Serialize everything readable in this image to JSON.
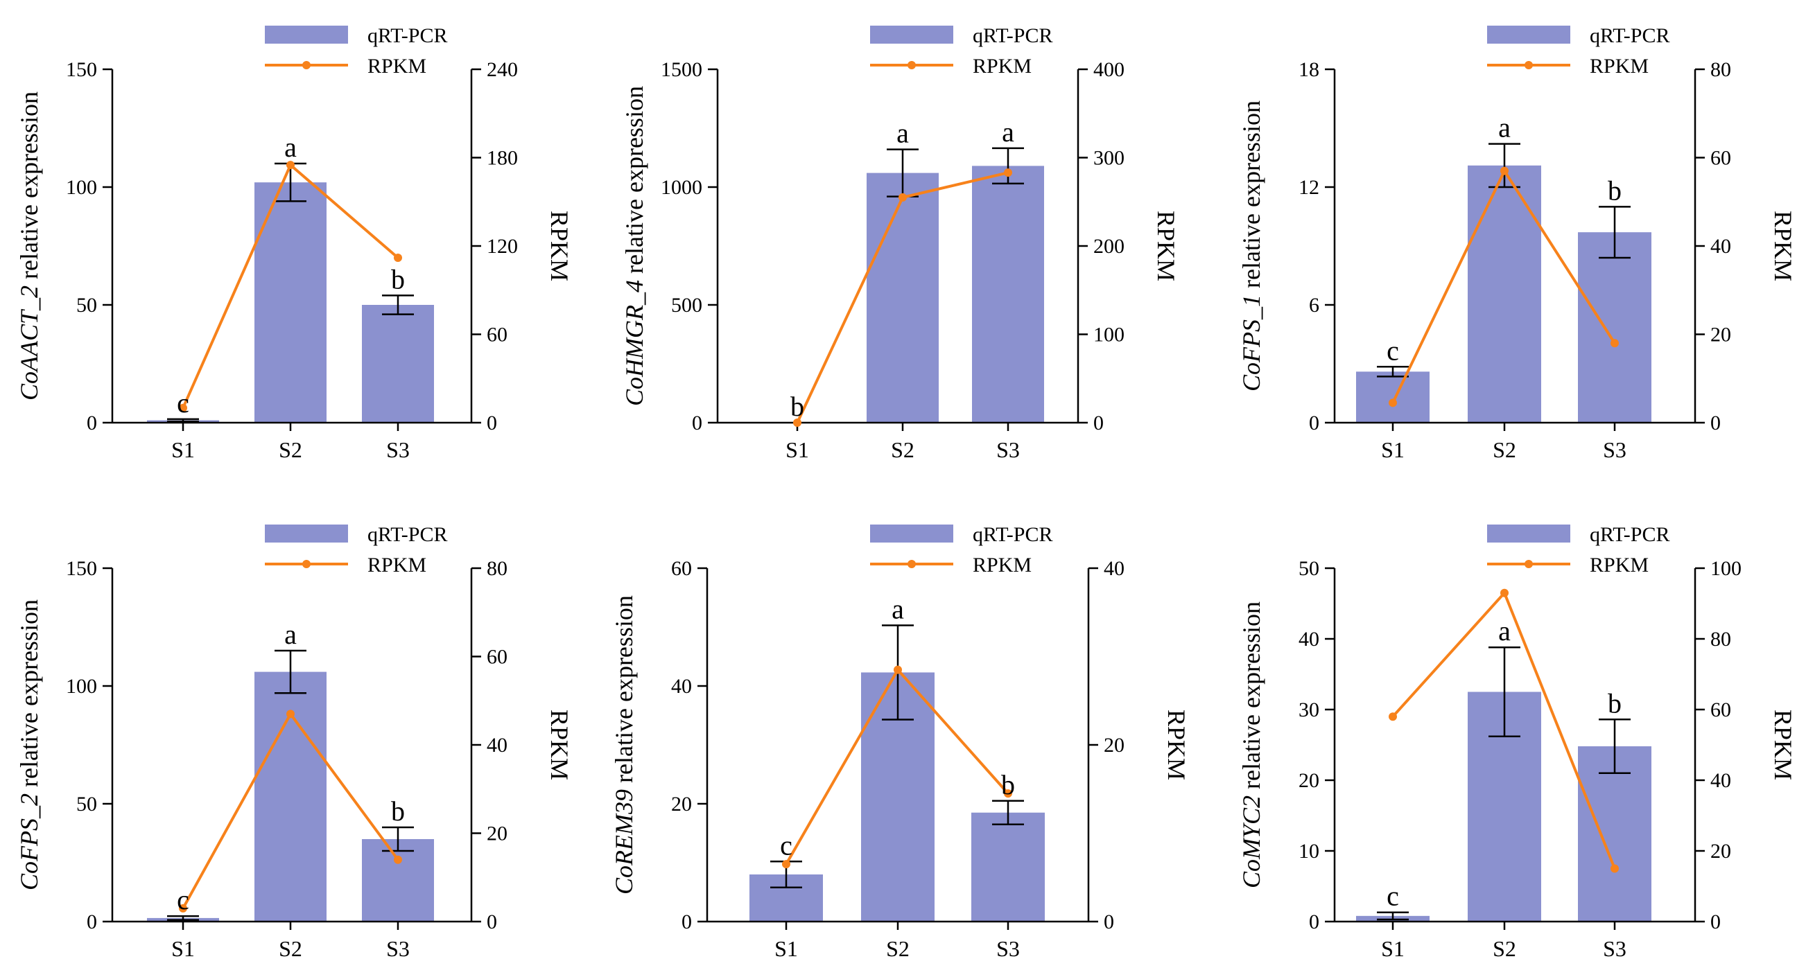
{
  "legend": {
    "bar_label": "qRT-PCR",
    "line_label": "RPKM"
  },
  "colors": {
    "bar": "#8b91cf",
    "line": "#f7821b",
    "axis": "#000000"
  },
  "chart_data": [
    {
      "type": "bar",
      "gene": "CoAACT_2",
      "ylabel_suffix": " relative expression",
      "y2label": "RPKM",
      "categories": [
        "S1",
        "S2",
        "S3"
      ],
      "left_ylim": [
        0,
        150
      ],
      "left_ticks": [
        0,
        50,
        100,
        150
      ],
      "right_ylim": [
        0,
        240
      ],
      "right_ticks": [
        0,
        60,
        120,
        180,
        240
      ],
      "series": [
        {
          "name": "qRT-PCR",
          "values": [
            1,
            102,
            50
          ],
          "errors": [
            0.5,
            8,
            4
          ]
        },
        {
          "name": "RPKM",
          "values": [
            10,
            175,
            112
          ]
        }
      ],
      "letters": [
        "c",
        "a",
        "b"
      ]
    },
    {
      "type": "bar",
      "gene": "CoHMGR_4",
      "ylabel_suffix": " relative expression",
      "y2label": "RPKM",
      "categories": [
        "S1",
        "S2",
        "S3"
      ],
      "left_ylim": [
        0,
        1500
      ],
      "left_ticks": [
        0,
        500,
        1000,
        1500
      ],
      "right_ylim": [
        0,
        400
      ],
      "right_ticks": [
        0,
        100,
        200,
        300,
        400
      ],
      "series": [
        {
          "name": "qRT-PCR",
          "values": [
            0,
            1060,
            1090
          ],
          "errors": [
            0,
            100,
            75
          ]
        },
        {
          "name": "RPKM",
          "values": [
            0,
            255,
            283
          ]
        }
      ],
      "letters": [
        "b",
        "a",
        "a"
      ]
    },
    {
      "type": "bar",
      "gene": "CoFPS_1",
      "ylabel_suffix": " relative expression",
      "y2label": "RPKM",
      "categories": [
        "S1",
        "S2",
        "S3"
      ],
      "left_ylim": [
        0,
        18
      ],
      "left_ticks": [
        0,
        6,
        12,
        18
      ],
      "right_ylim": [
        0,
        80
      ],
      "right_ticks": [
        0,
        20,
        40,
        60,
        80
      ],
      "series": [
        {
          "name": "qRT-PCR",
          "values": [
            2.6,
            13.1,
            9.7
          ],
          "errors": [
            0.25,
            1.1,
            1.3
          ]
        },
        {
          "name": "RPKM",
          "values": [
            4.5,
            57,
            18
          ]
        }
      ],
      "letters": [
        "c",
        "a",
        "b"
      ]
    },
    {
      "type": "bar",
      "gene": "CoFPS_2",
      "ylabel_suffix": " relative expression",
      "y2label": "RPKM",
      "categories": [
        "S1",
        "S2",
        "S3"
      ],
      "left_ylim": [
        0,
        150
      ],
      "left_ticks": [
        0,
        50,
        100,
        150
      ],
      "right_ylim": [
        0,
        80
      ],
      "right_ticks": [
        0,
        20,
        40,
        60,
        80
      ],
      "series": [
        {
          "name": "qRT-PCR",
          "values": [
            1.5,
            106,
            35
          ],
          "errors": [
            0.8,
            9,
            5
          ]
        },
        {
          "name": "RPKM",
          "values": [
            3,
            47,
            14
          ]
        }
      ],
      "letters": [
        "c",
        "a",
        "b"
      ]
    },
    {
      "type": "bar",
      "gene": "CoREM39",
      "ylabel_suffix": " relative expression",
      "y2label": "RPKM",
      "categories": [
        "S1",
        "S2",
        "S3"
      ],
      "left_ylim": [
        0,
        60
      ],
      "left_ticks": [
        0,
        20,
        40,
        60
      ],
      "right_ylim": [
        0,
        40
      ],
      "right_ticks": [
        0,
        20,
        40
      ],
      "series": [
        {
          "name": "qRT-PCR",
          "values": [
            8,
            42.3,
            18.5
          ],
          "errors": [
            2.2,
            8,
            2
          ]
        },
        {
          "name": "RPKM",
          "values": [
            6.5,
            28.5,
            14.5
          ]
        }
      ],
      "letters": [
        "c",
        "a",
        "b"
      ]
    },
    {
      "type": "bar",
      "gene": "CoMYC2",
      "ylabel_suffix": " relative expression",
      "y2label": "RPKM",
      "categories": [
        "S1",
        "S2",
        "S3"
      ],
      "left_ylim": [
        0,
        50
      ],
      "left_ticks": [
        0,
        10,
        20,
        30,
        40,
        50
      ],
      "right_ylim": [
        0,
        100
      ],
      "right_ticks": [
        0,
        20,
        40,
        60,
        80,
        100
      ],
      "series": [
        {
          "name": "qRT-PCR",
          "values": [
            0.8,
            32.5,
            24.8
          ],
          "errors": [
            0.5,
            6.3,
            3.8
          ]
        },
        {
          "name": "RPKM",
          "values": [
            58,
            93,
            15
          ]
        }
      ],
      "letters": [
        "c",
        "a",
        "b"
      ]
    }
  ]
}
